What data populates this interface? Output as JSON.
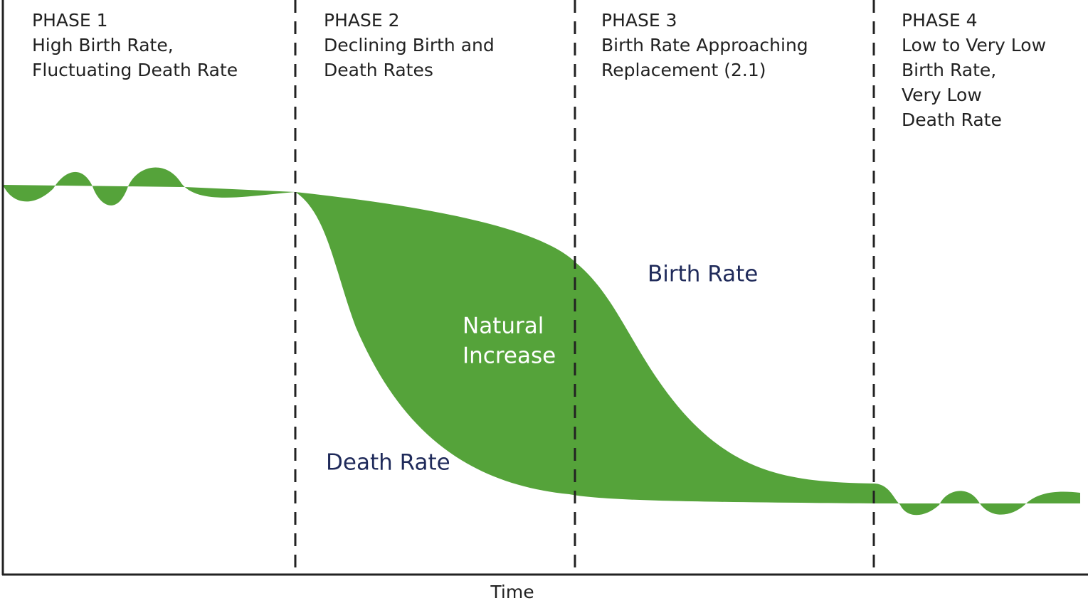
{
  "phases": [
    {
      "title": "PHASE 1",
      "lines": [
        "High Birth Rate,",
        "Fluctuating Death Rate"
      ]
    },
    {
      "title": "PHASE 2",
      "lines": [
        "Declining Birth and",
        "Death Rates"
      ]
    },
    {
      "title": "PHASE 3",
      "lines": [
        "Birth Rate Approaching",
        "Replacement (2.1)"
      ]
    },
    {
      "title": "PHASE 4",
      "lines": [
        "Low to Very Low",
        "Birth Rate,",
        "Very Low",
        "Death Rate"
      ]
    }
  ],
  "labels": {
    "birth_rate": "Birth Rate",
    "death_rate": "Death Rate",
    "natural_increase": [
      "Natural",
      "Increase"
    ]
  },
  "x_axis_label": "Time"
}
